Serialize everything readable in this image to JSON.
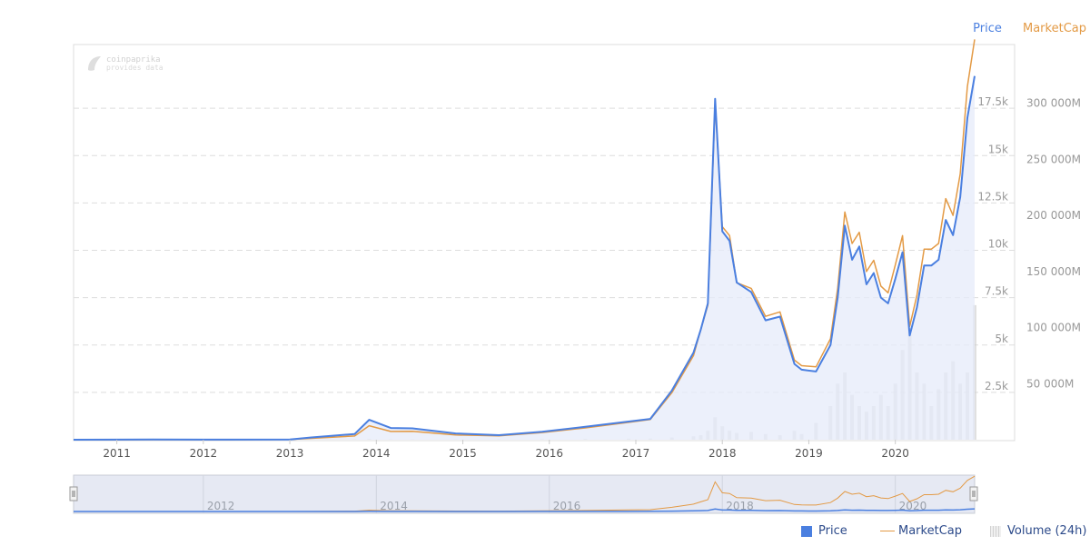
{
  "header": {
    "price_label": "Price",
    "marketcap_label": "MarketCap"
  },
  "watermark": {
    "name": "coinpaprika",
    "tagline": "provides data"
  },
  "legend": {
    "price": "Price",
    "marketcap": "MarketCap",
    "volume": "Volume (24h)"
  },
  "colors": {
    "price": "#4a7fe0",
    "marketcap": "#e39a45",
    "volume": "#cccccc",
    "area": "#e6ebfa"
  },
  "chart_data": {
    "type": "line",
    "x_ticks": [
      "2011",
      "2012",
      "2013",
      "2014",
      "2015",
      "2016",
      "2017",
      "2018",
      "2019",
      "2020"
    ],
    "navigator_ticks": [
      "2012",
      "2014",
      "2016",
      "2018",
      "2020"
    ],
    "price_axis": {
      "ticks": [
        "2.5k",
        "5k",
        "7.5k",
        "10k",
        "12.5k",
        "15k",
        "17.5k"
      ],
      "min": 0,
      "max": 20000
    },
    "marketcap_axis": {
      "ticks": [
        "50 000M",
        "100 000M",
        "150 000M",
        "200 000M",
        "250 000M",
        "300 000M"
      ],
      "min": 0,
      "max": 350000
    },
    "x": [
      "2010-07",
      "2011-06",
      "2012-01",
      "2013-01",
      "2013-04",
      "2013-10",
      "2013-12",
      "2014-03",
      "2014-06",
      "2014-12",
      "2015-06",
      "2015-12",
      "2016-06",
      "2016-12",
      "2017-03",
      "2017-06",
      "2017-09",
      "2017-10",
      "2017-11",
      "2017-12",
      "2018-01",
      "2018-02",
      "2018-03",
      "2018-05",
      "2018-07",
      "2018-09",
      "2018-11",
      "2018-12",
      "2019-02",
      "2019-04",
      "2019-05",
      "2019-06",
      "2019-07",
      "2019-08",
      "2019-09",
      "2019-10",
      "2019-11",
      "2019-12",
      "2020-01",
      "2020-02",
      "2020-03",
      "2020-04",
      "2020-05",
      "2020-06",
      "2020-07",
      "2020-08",
      "2020-09",
      "2020-10",
      "2020-11",
      "2020-12"
    ],
    "series": [
      {
        "name": "Price",
        "axis": "price",
        "values": [
          0,
          15,
          6,
          14,
          120,
          300,
          1050,
          620,
          600,
          330,
          240,
          420,
          680,
          960,
          1100,
          2600,
          4600,
          5800,
          7200,
          18000,
          11000,
          10500,
          8300,
          7800,
          6300,
          6500,
          4000,
          3700,
          3600,
          5000,
          7500,
          11300,
          9500,
          10200,
          8200,
          8800,
          7500,
          7200,
          8500,
          9900,
          5500,
          7000,
          9200,
          9200,
          9500,
          11600,
          10800,
          12800,
          17000,
          19200
        ]
      },
      {
        "name": "MarketCap",
        "axis": "marketcap",
        "values": [
          0,
          100,
          60,
          150,
          1200,
          3300,
          12500,
          7400,
          7500,
          4200,
          3500,
          6400,
          10500,
          15500,
          18000,
          42000,
          75000,
          98000,
          120000,
          300000,
          190000,
          182000,
          140000,
          135000,
          110000,
          114000,
          71000,
          66000,
          65000,
          90000,
          135000,
          203000,
          175000,
          185000,
          150000,
          160000,
          137000,
          131000,
          156000,
          182000,
          101000,
          129000,
          170000,
          170000,
          175000,
          215000,
          200000,
          237000,
          315000,
          357000
        ]
      },
      {
        "name": "Volume (24h)",
        "axis": "marketcap",
        "values": [
          0,
          0,
          0,
          0,
          100,
          300,
          800,
          400,
          300,
          200,
          300,
          500,
          800,
          900,
          1000,
          2000,
          3000,
          4000,
          8000,
          20000,
          12000,
          8000,
          6000,
          7000,
          5000,
          4000,
          8000,
          5000,
          15000,
          30000,
          50000,
          60000,
          40000,
          30000,
          25000,
          30000,
          40000,
          30000,
          50000,
          80000,
          100000,
          60000,
          50000,
          30000,
          45000,
          60000,
          70000,
          50000,
          60000,
          120000
        ]
      }
    ]
  }
}
